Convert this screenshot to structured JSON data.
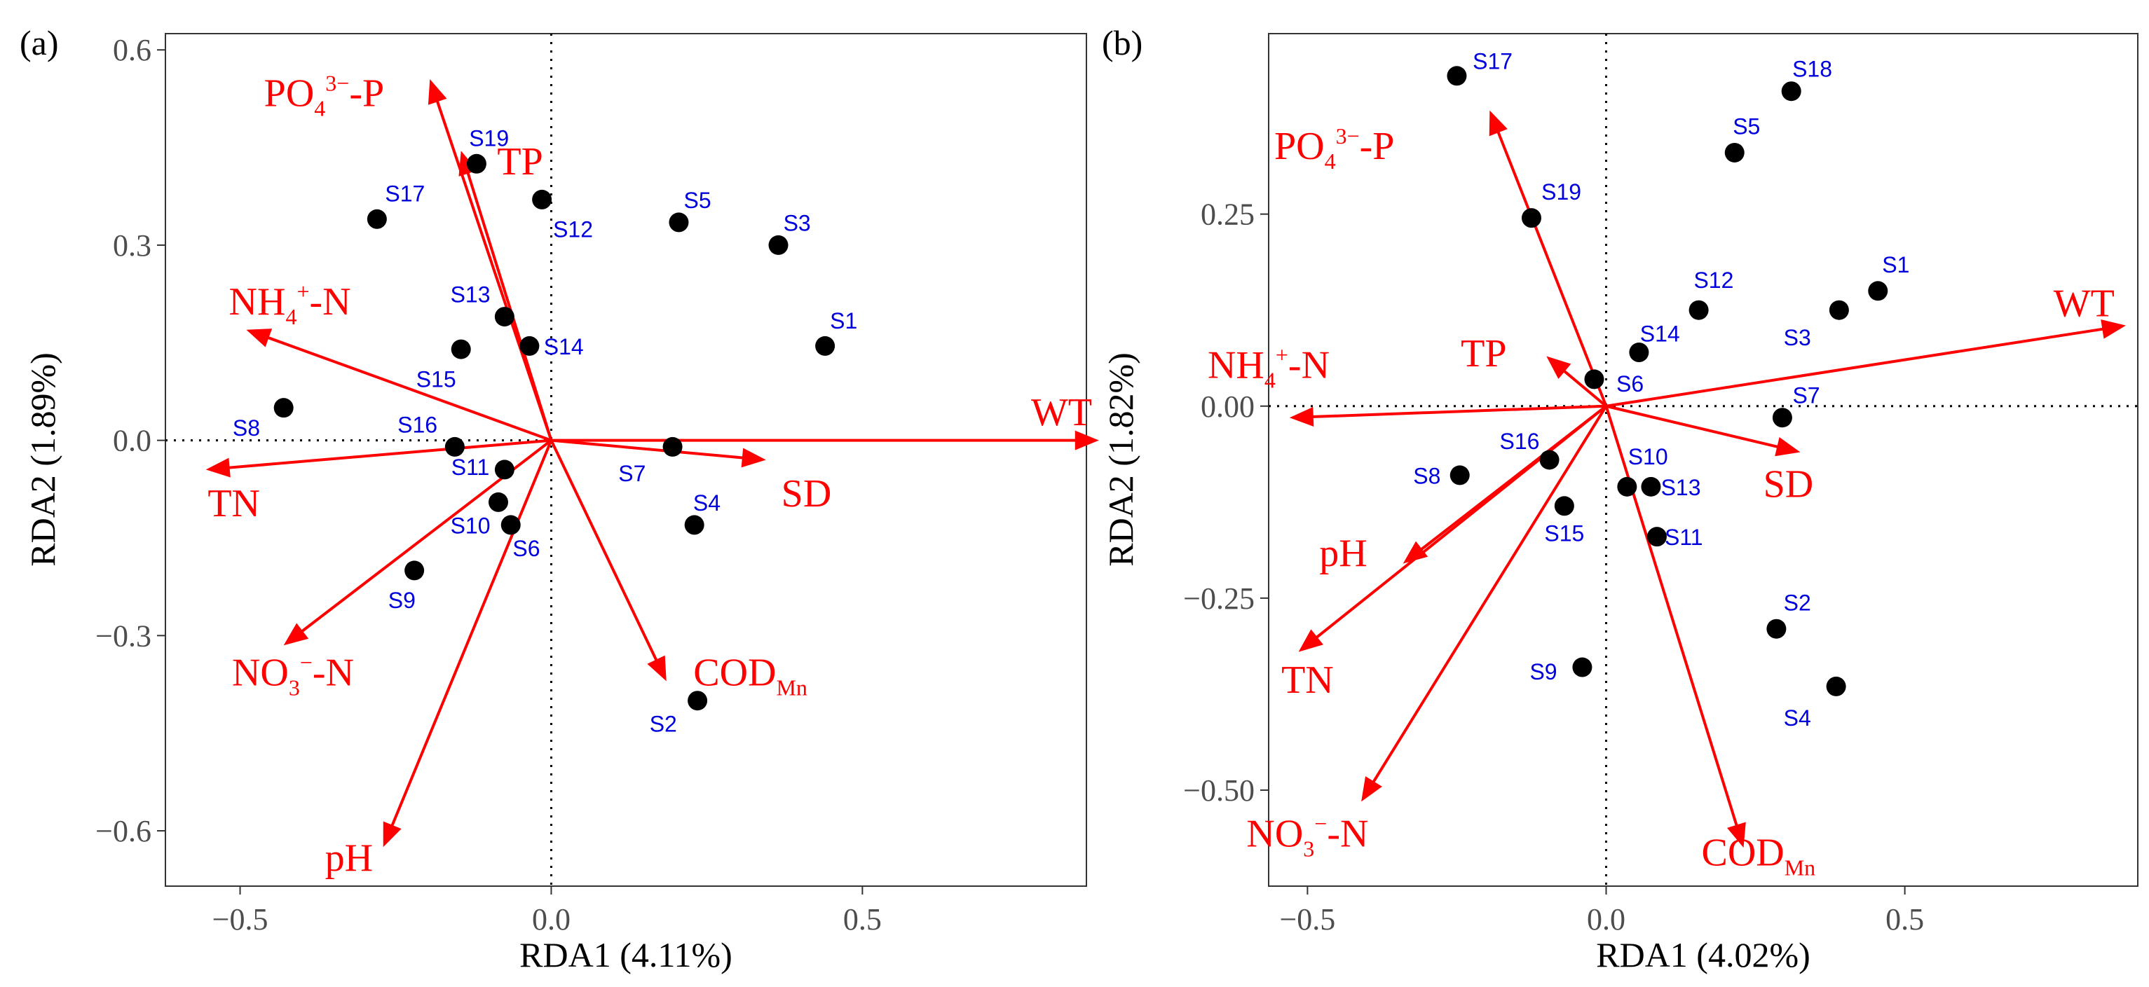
{
  "colors": {
    "arrow": "#ff0000",
    "site_label": "#0000dd",
    "point": "#000000",
    "axis": "#333333",
    "tick_label": "#4d4d4d"
  },
  "chart_data": [
    {
      "type": "scatter",
      "panel_label": "(a)",
      "xlabel": "RDA1 (4.11%)",
      "ylabel": "RDA2 (1.89%)",
      "xlim": [
        -0.62,
        0.86
      ],
      "ylim": [
        -0.685,
        0.625
      ],
      "xticks": [
        -0.5,
        0.0,
        0.5
      ],
      "xtick_labels": [
        "−0.5",
        "0.0",
        "0.5"
      ],
      "yticks": [
        -0.6,
        -0.3,
        0.0,
        0.3,
        0.6
      ],
      "ytick_labels": [
        "−0.6",
        "−0.3",
        "0.0",
        "0.3",
        "0.6"
      ],
      "sites": [
        {
          "label": "S1",
          "x": 0.44,
          "y": 0.145,
          "lab_x": 0.47,
          "lab_y": 0.185
        },
        {
          "label": "S2",
          "x": 0.235,
          "y": -0.4,
          "lab_x": 0.18,
          "lab_y": -0.435
        },
        {
          "label": "S3",
          "x": 0.365,
          "y": 0.3,
          "lab_x": 0.395,
          "lab_y": 0.335
        },
        {
          "label": "S4",
          "x": 0.23,
          "y": -0.13,
          "lab_x": 0.25,
          "lab_y": -0.095
        },
        {
          "label": "S5",
          "x": 0.205,
          "y": 0.335,
          "lab_x": 0.235,
          "lab_y": 0.37
        },
        {
          "label": "S6",
          "x": -0.065,
          "y": -0.13,
          "lab_x": -0.04,
          "lab_y": -0.165
        },
        {
          "label": "S7",
          "x": 0.195,
          "y": -0.01,
          "lab_x": 0.13,
          "lab_y": -0.05
        },
        {
          "label": "S8",
          "x": -0.43,
          "y": 0.05,
          "lab_x": -0.49,
          "lab_y": 0.02
        },
        {
          "label": "S9",
          "x": -0.22,
          "y": -0.2,
          "lab_x": -0.24,
          "lab_y": -0.245
        },
        {
          "label": "S10",
          "x": -0.085,
          "y": -0.095,
          "lab_x": -0.13,
          "lab_y": -0.13
        },
        {
          "label": "S11",
          "x": -0.075,
          "y": -0.045,
          "lab_x": -0.13,
          "lab_y": -0.04
        },
        {
          "label": "S12",
          "x": -0.015,
          "y": 0.37,
          "lab_x": 0.035,
          "lab_y": 0.325
        },
        {
          "label": "S13",
          "x": -0.075,
          "y": 0.19,
          "lab_x": -0.13,
          "lab_y": 0.225
        },
        {
          "label": "S14",
          "x": -0.035,
          "y": 0.145,
          "lab_x": 0.02,
          "lab_y": 0.145
        },
        {
          "label": "S15",
          "x": -0.145,
          "y": 0.14,
          "lab_x": -0.185,
          "lab_y": 0.095
        },
        {
          "label": "S16",
          "x": -0.155,
          "y": -0.01,
          "lab_x": -0.215,
          "lab_y": 0.025
        },
        {
          "label": "S17",
          "x": -0.28,
          "y": 0.34,
          "lab_x": -0.235,
          "lab_y": 0.38
        },
        {
          "label": "S19",
          "x": -0.12,
          "y": 0.425,
          "lab_x": -0.1,
          "lab_y": 0.465
        }
      ],
      "arrows": [
        {
          "label": "WT",
          "x": 0.88,
          "y": 0.0,
          "lab_x": 0.82,
          "lab_y": 0.045
        },
        {
          "label": "SD",
          "x": 0.345,
          "y": -0.03,
          "lab_x": 0.41,
          "lab_y": -0.08
        },
        {
          "label": "TN",
          "x": -0.555,
          "y": -0.045,
          "lab_x": -0.51,
          "lab_y": -0.095
        },
        {
          "label": "TP",
          "x": -0.145,
          "y": 0.445,
          "lab_x": -0.05,
          "lab_y": 0.43
        },
        {
          "label": "NH4+-N",
          "x": -0.49,
          "y": 0.17,
          "lab_x": -0.42,
          "lab_y": 0.215
        },
        {
          "label": "PO43--P",
          "x": -0.195,
          "y": 0.555,
          "lab_x": -0.365,
          "lab_y": 0.535
        },
        {
          "label": "NO3--N",
          "x": -0.43,
          "y": -0.315,
          "lab_x": -0.415,
          "lab_y": -0.355
        },
        {
          "label": "pH",
          "x": -0.27,
          "y": -0.625,
          "lab_x": -0.325,
          "lab_y": -0.64
        },
        {
          "label": "CODMn",
          "x": 0.185,
          "y": -0.37,
          "lab_x": 0.32,
          "lab_y": -0.355
        }
      ]
    },
    {
      "type": "scatter",
      "panel_label": "(b)",
      "xlabel": "RDA1 (4.02%)",
      "ylabel": "RDA2 (1.82%)",
      "xlim": [
        -0.565,
        0.89
      ],
      "ylim": [
        -0.625,
        0.485
      ],
      "xticks": [
        -0.5,
        0.0,
        0.5
      ],
      "xtick_labels": [
        "−0.5",
        "0.0",
        "0.5"
      ],
      "yticks": [
        -0.5,
        -0.25,
        0.0,
        0.25
      ],
      "ytick_labels": [
        "−0.50",
        "−0.25",
        "0.00",
        "0.25"
      ],
      "sites": [
        {
          "label": "S1",
          "x": 0.455,
          "y": 0.15,
          "lab_x": 0.485,
          "lab_y": 0.185
        },
        {
          "label": "S2",
          "x": 0.285,
          "y": -0.29,
          "lab_x": 0.32,
          "lab_y": -0.255
        },
        {
          "label": "S3",
          "x": 0.39,
          "y": 0.125,
          "lab_x": 0.32,
          "lab_y": 0.09
        },
        {
          "label": "S4",
          "x": 0.385,
          "y": -0.365,
          "lab_x": 0.32,
          "lab_y": -0.405
        },
        {
          "label": "S5",
          "x": 0.215,
          "y": 0.33,
          "lab_x": 0.235,
          "lab_y": 0.365
        },
        {
          "label": "S6",
          "x": -0.02,
          "y": 0.035,
          "lab_x": 0.04,
          "lab_y": 0.03
        },
        {
          "label": "S7",
          "x": 0.295,
          "y": -0.015,
          "lab_x": 0.335,
          "lab_y": 0.015
        },
        {
          "label": "S8",
          "x": -0.245,
          "y": -0.09,
          "lab_x": -0.3,
          "lab_y": -0.09
        },
        {
          "label": "S9",
          "x": -0.04,
          "y": -0.34,
          "lab_x": -0.105,
          "lab_y": -0.345
        },
        {
          "label": "S10",
          "x": 0.035,
          "y": -0.105,
          "lab_x": 0.07,
          "lab_y": -0.065
        },
        {
          "label": "S11",
          "x": 0.085,
          "y": -0.17,
          "lab_x": 0.13,
          "lab_y": -0.17
        },
        {
          "label": "S12",
          "x": 0.155,
          "y": 0.125,
          "lab_x": 0.18,
          "lab_y": 0.165
        },
        {
          "label": "S13",
          "x": 0.075,
          "y": -0.105,
          "lab_x": 0.125,
          "lab_y": -0.105
        },
        {
          "label": "S14",
          "x": 0.055,
          "y": 0.07,
          "lab_x": 0.09,
          "lab_y": 0.095
        },
        {
          "label": "S15",
          "x": -0.07,
          "y": -0.13,
          "lab_x": -0.07,
          "lab_y": -0.165
        },
        {
          "label": "S16",
          "x": -0.095,
          "y": -0.07,
          "lab_x": -0.145,
          "lab_y": -0.045
        },
        {
          "label": "S17",
          "x": -0.25,
          "y": 0.43,
          "lab_x": -0.19,
          "lab_y": 0.45
        },
        {
          "label": "S18",
          "x": 0.31,
          "y": 0.41,
          "lab_x": 0.345,
          "lab_y": 0.44
        },
        {
          "label": "S19",
          "x": -0.125,
          "y": 0.245,
          "lab_x": -0.075,
          "lab_y": 0.28
        }
      ],
      "arrows": [
        {
          "label": "WT",
          "x": 0.87,
          "y": 0.105,
          "lab_x": 0.8,
          "lab_y": 0.135
        },
        {
          "label": "SD",
          "x": 0.325,
          "y": -0.06,
          "lab_x": 0.305,
          "lab_y": -0.1
        },
        {
          "label": "TN",
          "x": -0.515,
          "y": -0.32,
          "lab_x": -0.5,
          "lab_y": -0.355
        },
        {
          "label": "TP",
          "x": -0.1,
          "y": 0.065,
          "lab_x": -0.205,
          "lab_y": 0.07
        },
        {
          "label": "NH4+-N",
          "x": -0.53,
          "y": -0.015,
          "lab_x": -0.565,
          "lab_y": 0.055
        },
        {
          "label": "PO43--P",
          "x": -0.195,
          "y": 0.385,
          "lab_x": -0.455,
          "lab_y": 0.34
        },
        {
          "label": "NO3--N",
          "x": -0.41,
          "y": -0.515,
          "lab_x": -0.5,
          "lab_y": -0.555
        },
        {
          "label": "pH",
          "x": -0.34,
          "y": -0.205,
          "lab_x": -0.44,
          "lab_y": -0.19
        },
        {
          "label": "CODMn",
          "x": 0.23,
          "y": -0.575,
          "lab_x": 0.255,
          "lab_y": -0.58
        }
      ]
    }
  ]
}
